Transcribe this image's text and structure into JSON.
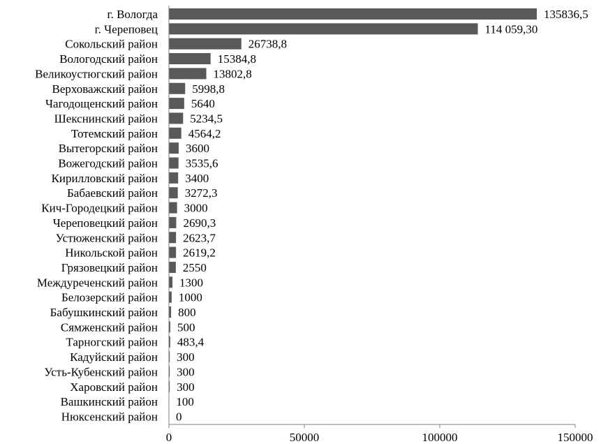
{
  "chart_data": {
    "type": "bar",
    "orientation": "horizontal",
    "title": "",
    "xlabel": "",
    "ylabel": "",
    "xlim": [
      0,
      150000
    ],
    "x_ticks": [
      "0",
      "50000",
      "100000",
      "150000"
    ],
    "x_tick_values": [
      0,
      50000,
      100000,
      150000
    ],
    "grid": false,
    "bar_color": "#595959",
    "categories": [
      "г. Вологда",
      "г. Череповец",
      "Сокольский район",
      "Вологодский район",
      "Великоустюгский район",
      "Верховажский район",
      "Чагодощенский район",
      "Шекснинский район",
      "Тотемский район",
      "Вытегорский район",
      "Вожегодский район",
      "Кирилловский район",
      "Бабаевский район",
      "Кич-Городецкий район",
      "Череповецкий район",
      "Устюженский район",
      "Никольской район",
      "Грязовецкий район",
      "Междуреченский  район",
      "Белозерский район",
      "Бабушкинский район",
      "Сямженский район",
      "Тарногский район",
      "Кадуйский район",
      "Усть-Кубенский район",
      "Харовский район",
      "Вашкинский район",
      "Нюксенский район"
    ],
    "values": [
      135836.5,
      114059.3,
      26738.8,
      15384.8,
      13802.8,
      5998.8,
      5640,
      5234.5,
      4564.2,
      3600,
      3535.6,
      3400,
      3272.3,
      3000,
      2690.3,
      2623.7,
      2619.2,
      2550,
      1300,
      1000,
      800,
      500,
      483.4,
      300,
      300,
      300,
      100,
      0
    ],
    "value_labels": [
      "135836,5",
      "114 059,30",
      "26738,8",
      "15384,8",
      "13802,8",
      "5998,8",
      "5640",
      "5234,5",
      "4564,2",
      "3600",
      "3535,6",
      "3400",
      "3272,3",
      "3000",
      "2690,3",
      "2623,7",
      "2619,2",
      "2550",
      "1300",
      "1000",
      "800",
      "500",
      "483,4",
      "300",
      "300",
      "300",
      "100",
      "0"
    ]
  }
}
